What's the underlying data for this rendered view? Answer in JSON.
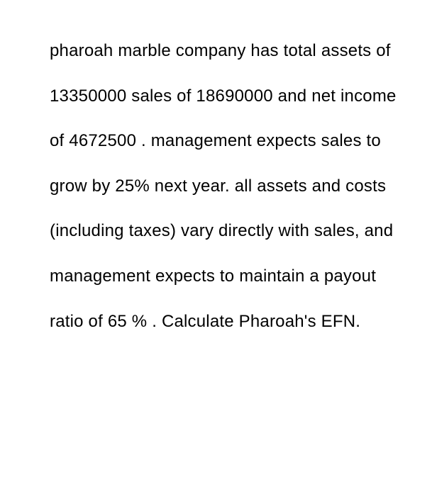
{
  "question": {
    "text": "pharoah marble company has total assets of 13350000 sales of 18690000 and net income of 4672500 .  management expects sales to grow by 25% next year. all assets and costs (including taxes) vary directly with sales, and management expects to maintain a payout ratio of 65 % .  Calculate Pharoah's EFN.",
    "font_size": 24,
    "line_height": 2.65,
    "text_color": "#000000",
    "background_color": "#ffffff",
    "values": {
      "total_assets": 13350000,
      "sales": 18690000,
      "net_income": 4672500,
      "sales_growth_percent": 25,
      "payout_ratio_percent": 65
    }
  }
}
